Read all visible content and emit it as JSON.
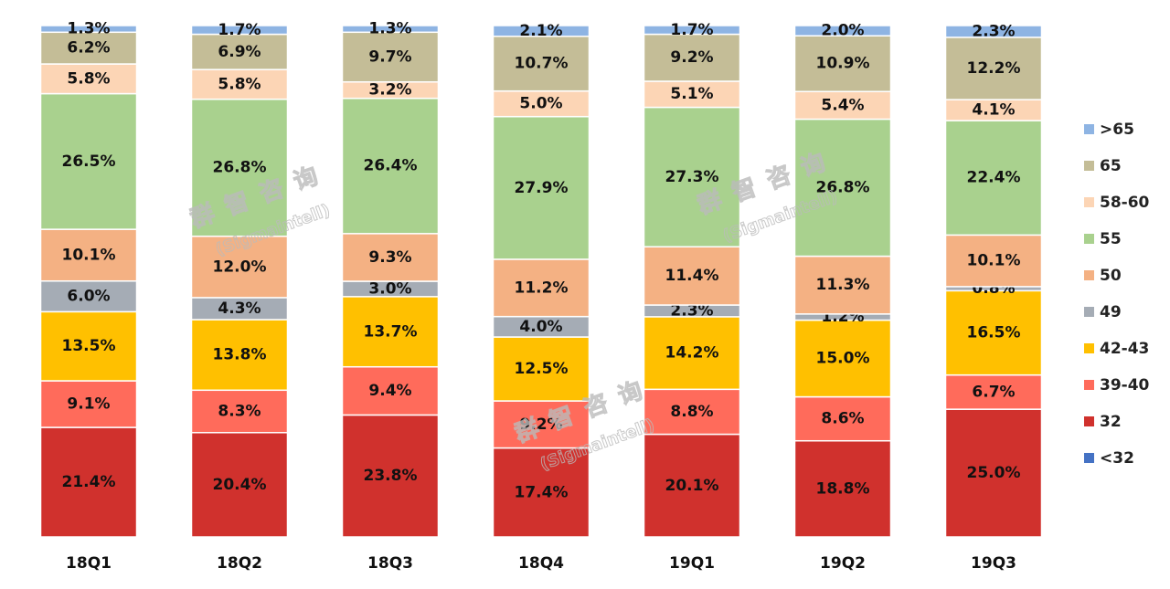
{
  "chart_data": {
    "type": "stacked_bar",
    "categories": [
      "18Q1",
      "18Q2",
      "18Q3",
      "18Q4",
      "19Q1",
      "19Q2",
      "19Q3"
    ],
    "watermark": [
      "群智咨询",
      "(Sigmaintell)"
    ],
    "series": [
      {
        "name": "<32",
        "color": "#4472c4",
        "values": [
          0,
          0,
          0,
          0,
          0,
          0,
          0
        ]
      },
      {
        "name": "32",
        "color": "#d0312d",
        "values": [
          21.4,
          20.4,
          23.8,
          17.4,
          20.1,
          18.8,
          25.0
        ],
        "value_labels": [
          "21.4%",
          "20.4%",
          "23.8%",
          "17.4%",
          "20.1%",
          "18.8%",
          "25.0%"
        ]
      },
      {
        "name": "39-40",
        "color": "#ff6b5b",
        "values": [
          9.1,
          8.3,
          9.4,
          9.2,
          8.8,
          8.6,
          6.7
        ],
        "value_labels": [
          "9.1%",
          "8.3%",
          "9.4%",
          "9.2%",
          "8.8%",
          "8.6%",
          "6.7%"
        ]
      },
      {
        "name": "42-43",
        "color": "#ffc000",
        "values": [
          13.5,
          13.8,
          13.7,
          12.5,
          14.2,
          15.0,
          16.5
        ],
        "value_labels": [
          "13.5%",
          "13.8%",
          "13.7%",
          "12.5%",
          "14.2%",
          "15.0%",
          "16.5%"
        ]
      },
      {
        "name": "49",
        "color": "#a5acb5",
        "values": [
          6.0,
          4.3,
          3.0,
          4.0,
          2.3,
          1.2,
          0.8
        ],
        "value_labels": [
          "6.0%",
          "4.3%",
          "3.0%",
          "4.0%",
          "2.3%",
          "1.2%",
          "0.8%"
        ]
      },
      {
        "name": "50",
        "color": "#f4b183",
        "values": [
          10.1,
          12.0,
          9.3,
          11.2,
          11.4,
          11.3,
          10.1
        ],
        "value_labels": [
          "10.1%",
          "12.0%",
          "9.3%",
          "11.2%",
          "11.4%",
          "11.3%",
          "10.1%"
        ]
      },
      {
        "name": "55",
        "color": "#a9d18e",
        "values": [
          26.5,
          26.8,
          26.4,
          27.9,
          27.3,
          26.8,
          22.4
        ],
        "value_labels": [
          "26.5%",
          "26.8%",
          "26.4%",
          "27.9%",
          "27.3%",
          "26.8%",
          "22.4%"
        ]
      },
      {
        "name": "58-60",
        "color": "#fcd5b5",
        "values": [
          5.8,
          5.8,
          3.2,
          5.0,
          5.1,
          5.4,
          4.1
        ],
        "value_labels": [
          "5.8%",
          "5.8%",
          "3.2%",
          "5.0%",
          "5.1%",
          "5.4%",
          "4.1%"
        ]
      },
      {
        "name": "65",
        "color": "#c4bd97",
        "values": [
          6.2,
          6.9,
          9.7,
          10.7,
          9.2,
          10.9,
          12.2
        ],
        "value_labels": [
          "6.2%",
          "6.9%",
          "9.7%",
          "10.7%",
          "9.2%",
          "10.9%",
          "12.2%"
        ]
      },
      {
        "name": ">65",
        "color": "#8eb4e3",
        "values": [
          1.3,
          1.7,
          1.3,
          2.1,
          1.7,
          2.0,
          2.3
        ],
        "value_labels": [
          "1.3%",
          "1.7%",
          "1.3%",
          "2.1%",
          "1.7%",
          "2.0%",
          "2.3%"
        ]
      }
    ]
  }
}
